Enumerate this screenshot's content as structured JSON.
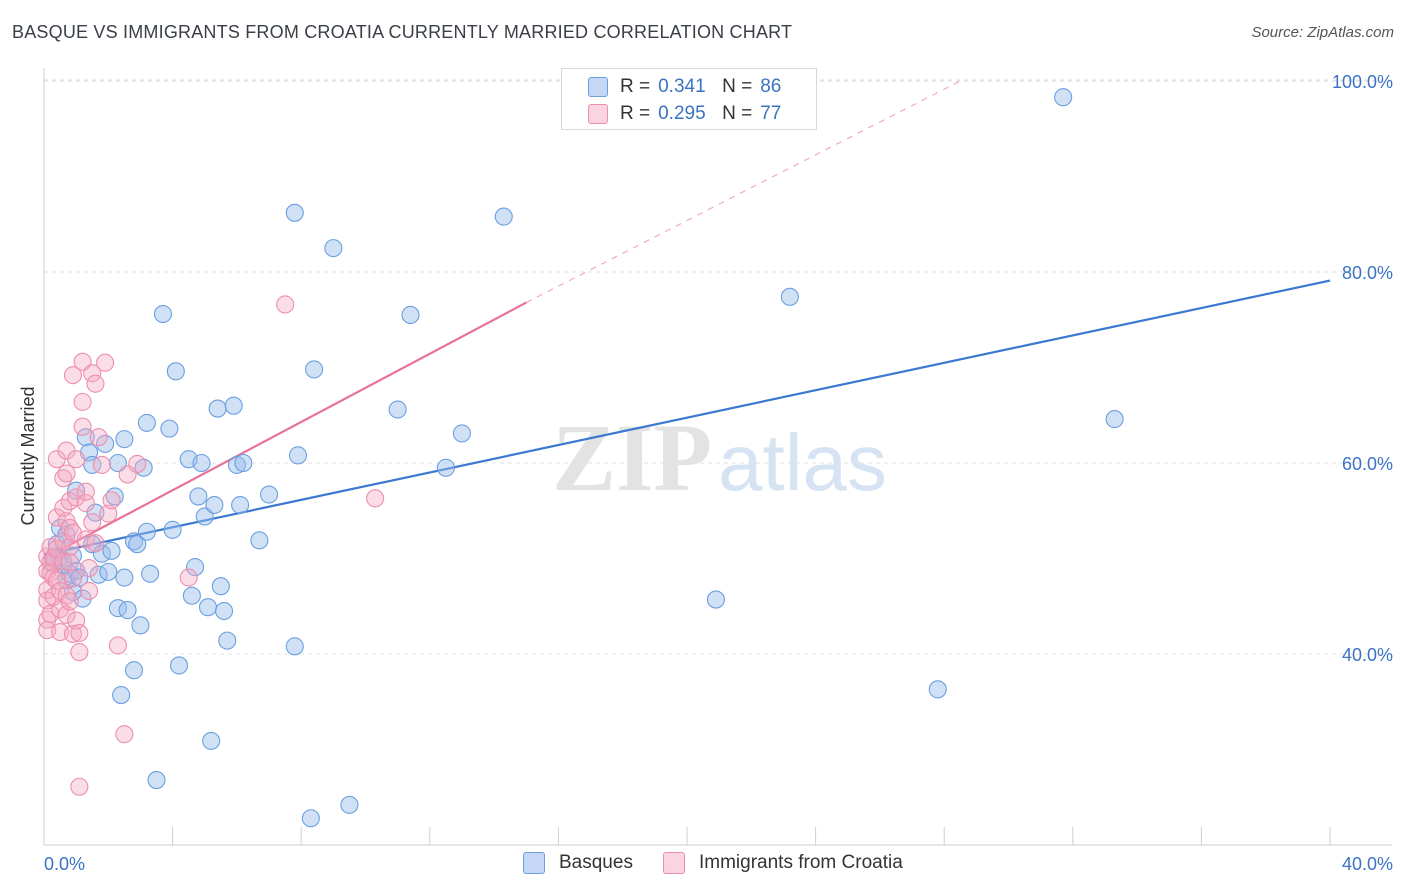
{
  "title": "BASQUE VS IMMIGRANTS FROM CROATIA CURRENTLY MARRIED CORRELATION CHART",
  "source": "Source: ZipAtlas.com",
  "watermark": {
    "zip": "ZIP",
    "atlas": "atlas"
  },
  "legend": {
    "r_label": "R =",
    "n_label": "N =",
    "series": [
      {
        "name": "Basques",
        "r": "0.341",
        "n": "86",
        "fill": "#a9c8f0",
        "stroke": "#6b9fe0"
      },
      {
        "name": "Immigrants from Croatia",
        "r": "0.295",
        "n": "77",
        "fill": "#f7bfd0",
        "stroke": "#ec8fae"
      }
    ]
  },
  "chart_data": {
    "type": "scatter",
    "title": "BASQUE VS IMMIGRANTS FROM CROATIA CURRENTLY MARRIED CORRELATION CHART",
    "xlabel": "",
    "ylabel": "Currently Married",
    "xlim": [
      0,
      40
    ],
    "ylim": [
      20,
      102
    ],
    "x_tick_labels": [
      "0.0%",
      "40.0%"
    ],
    "y_ticks": [
      40,
      60,
      80,
      100
    ],
    "y_tick_labels": [
      "40.0%",
      "60.0%",
      "80.0%",
      "100.0%"
    ],
    "grid": true,
    "series": [
      {
        "name": "Basques",
        "color": "#3b78d0",
        "trend": {
          "x": [
            0,
            40
          ],
          "y": [
            50.4,
            79.1
          ],
          "dashed_to": null
        },
        "points": [
          [
            0.3,
            50.2
          ],
          [
            0.3,
            49.5
          ],
          [
            0.4,
            51.5
          ],
          [
            0.5,
            53.2
          ],
          [
            0.5,
            50.1
          ],
          [
            0.6,
            49.3
          ],
          [
            0.7,
            47.7
          ],
          [
            0.7,
            52.5
          ],
          [
            0.8,
            48.4
          ],
          [
            0.9,
            50.3
          ],
          [
            0.9,
            46.5
          ],
          [
            1.0,
            48.7
          ],
          [
            1.0,
            57.1
          ],
          [
            1.1,
            48.0
          ],
          [
            1.2,
            45.8
          ],
          [
            1.3,
            62.7
          ],
          [
            1.4,
            61.1
          ],
          [
            1.5,
            59.8
          ],
          [
            1.5,
            51.5
          ],
          [
            1.6,
            54.8
          ],
          [
            1.7,
            48.3
          ],
          [
            1.8,
            50.5
          ],
          [
            1.9,
            62.0
          ],
          [
            2.0,
            48.6
          ],
          [
            2.1,
            50.8
          ],
          [
            2.2,
            56.5
          ],
          [
            2.3,
            60.0
          ],
          [
            2.3,
            44.8
          ],
          [
            2.4,
            35.7
          ],
          [
            2.5,
            62.5
          ],
          [
            2.5,
            48.0
          ],
          [
            2.6,
            44.6
          ],
          [
            2.8,
            51.8
          ],
          [
            2.8,
            38.3
          ],
          [
            2.9,
            51.5
          ],
          [
            3.0,
            43.0
          ],
          [
            3.1,
            59.5
          ],
          [
            3.2,
            52.8
          ],
          [
            3.2,
            64.2
          ],
          [
            3.3,
            48.4
          ],
          [
            3.5,
            26.8
          ],
          [
            3.7,
            75.6
          ],
          [
            3.9,
            63.6
          ],
          [
            4.0,
            53.0
          ],
          [
            4.1,
            69.6
          ],
          [
            4.2,
            38.8
          ],
          [
            4.5,
            60.4
          ],
          [
            4.6,
            46.1
          ],
          [
            4.7,
            49.1
          ],
          [
            4.8,
            56.5
          ],
          [
            4.9,
            60.0
          ],
          [
            5.0,
            54.4
          ],
          [
            5.1,
            44.9
          ],
          [
            5.2,
            30.9
          ],
          [
            5.3,
            55.6
          ],
          [
            5.4,
            65.7
          ],
          [
            5.5,
            47.1
          ],
          [
            5.6,
            44.5
          ],
          [
            5.7,
            41.4
          ],
          [
            5.9,
            66.0
          ],
          [
            6.0,
            59.8
          ],
          [
            6.1,
            55.6
          ],
          [
            6.2,
            60.0
          ],
          [
            6.7,
            51.9
          ],
          [
            7.0,
            56.7
          ],
          [
            7.8,
            86.2
          ],
          [
            7.8,
            40.8
          ],
          [
            7.9,
            60.8
          ],
          [
            8.3,
            22.8
          ],
          [
            8.4,
            69.8
          ],
          [
            9.0,
            82.5
          ],
          [
            9.5,
            24.2
          ],
          [
            11.0,
            65.6
          ],
          [
            11.4,
            75.5
          ],
          [
            12.5,
            59.5
          ],
          [
            13.0,
            63.1
          ],
          [
            14.3,
            85.8
          ],
          [
            20.9,
            45.7
          ],
          [
            23.2,
            77.4
          ],
          [
            27.8,
            36.3
          ],
          [
            31.7,
            98.3
          ],
          [
            33.3,
            64.6
          ]
        ]
      },
      {
        "name": "Immigrants from Croatia",
        "color": "#e8729a",
        "trend": {
          "x": [
            0,
            15
          ],
          "y": [
            50.0,
            76.8
          ],
          "dashed_to": [
            28.5,
            100.0
          ]
        },
        "points": [
          [
            0.1,
            50.2
          ],
          [
            0.1,
            48.7
          ],
          [
            0.1,
            46.7
          ],
          [
            0.1,
            45.6
          ],
          [
            0.1,
            43.6
          ],
          [
            0.1,
            42.5
          ],
          [
            0.2,
            51.2
          ],
          [
            0.2,
            49.6
          ],
          [
            0.2,
            48.5
          ],
          [
            0.2,
            44.2
          ],
          [
            0.3,
            50.0
          ],
          [
            0.3,
            48.0
          ],
          [
            0.3,
            46.0
          ],
          [
            0.4,
            60.4
          ],
          [
            0.4,
            54.3
          ],
          [
            0.4,
            51.0
          ],
          [
            0.4,
            47.7
          ],
          [
            0.5,
            46.6
          ],
          [
            0.5,
            44.7
          ],
          [
            0.5,
            42.3
          ],
          [
            0.6,
            58.4
          ],
          [
            0.6,
            55.3
          ],
          [
            0.6,
            51.8
          ],
          [
            0.6,
            49.7
          ],
          [
            0.7,
            61.3
          ],
          [
            0.7,
            58.9
          ],
          [
            0.7,
            53.9
          ],
          [
            0.7,
            46.1
          ],
          [
            0.7,
            44.1
          ],
          [
            0.8,
            56.0
          ],
          [
            0.8,
            53.2
          ],
          [
            0.8,
            51.2
          ],
          [
            0.8,
            49.6
          ],
          [
            0.8,
            45.5
          ],
          [
            0.9,
            69.2
          ],
          [
            0.9,
            52.7
          ],
          [
            0.9,
            47.9
          ],
          [
            0.9,
            42.1
          ],
          [
            1.0,
            60.4
          ],
          [
            1.0,
            56.4
          ],
          [
            1.0,
            43.5
          ],
          [
            1.1,
            40.2
          ],
          [
            1.1,
            42.2
          ],
          [
            1.2,
            66.4
          ],
          [
            1.2,
            63.8
          ],
          [
            1.2,
            70.6
          ],
          [
            1.3,
            55.8
          ],
          [
            1.3,
            57.0
          ],
          [
            1.3,
            52.0
          ],
          [
            1.4,
            49.0
          ],
          [
            1.4,
            46.6
          ],
          [
            1.5,
            69.4
          ],
          [
            1.5,
            53.8
          ],
          [
            1.6,
            68.3
          ],
          [
            1.6,
            51.6
          ],
          [
            1.7,
            62.7
          ],
          [
            1.8,
            59.8
          ],
          [
            1.9,
            70.5
          ],
          [
            2.0,
            54.7
          ],
          [
            2.1,
            56.1
          ],
          [
            2.3,
            40.9
          ],
          [
            2.5,
            31.6
          ],
          [
            2.6,
            58.8
          ],
          [
            2.9,
            59.9
          ],
          [
            1.1,
            26.1
          ],
          [
            4.5,
            48.0
          ],
          [
            7.5,
            76.6
          ],
          [
            10.3,
            56.3
          ]
        ]
      }
    ]
  }
}
